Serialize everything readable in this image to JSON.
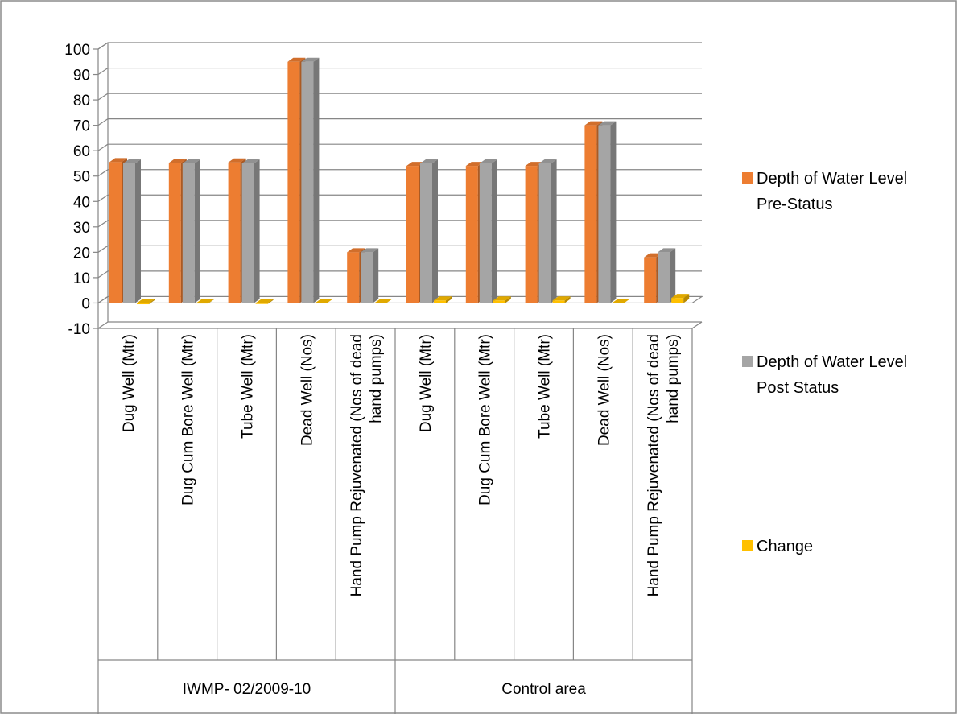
{
  "chart_data": {
    "type": "bar",
    "title": "",
    "xlabel": "",
    "ylabel": "",
    "ylim": [
      -10,
      100
    ],
    "yticks": [
      -10,
      0,
      10,
      20,
      30,
      40,
      50,
      60,
      70,
      80,
      90,
      100
    ],
    "grid": true,
    "legend_position": "right",
    "groups": [
      {
        "label": "IWMP- 02/2009-10",
        "categories": [
          0,
          1,
          2,
          3,
          4
        ]
      },
      {
        "label": "Control area",
        "categories": [
          5,
          6,
          7,
          8,
          9
        ]
      }
    ],
    "categories": [
      [
        "Dug Well (Mtr)"
      ],
      [
        "Dug Cum Bore Well (Mtr)"
      ],
      [
        "Tube Well (Mtr)"
      ],
      [
        "Dead Well (Nos)"
      ],
      [
        "Hand Pump Rejuvenated (Nos of dead",
        "hand pumps)"
      ],
      [
        "Dug Well (Mtr)"
      ],
      [
        "Dug Cum Bore Well (Mtr)"
      ],
      [
        "Tube Well (Mtr)"
      ],
      [
        "Dead Well (Nos)"
      ],
      [
        "Hand Pump Rejuvenated (Nos of dead",
        "hand pumps)"
      ]
    ],
    "series": [
      {
        "name_lines": [
          "Depth of Water Level",
          "Pre-Status"
        ],
        "color": "#ED7D31",
        "values": [
          55.5,
          55.2,
          55.4,
          95,
          20,
          54,
          54,
          54,
          70,
          18
        ]
      },
      {
        "name_lines": [
          "Depth of Water Level",
          "Post Status"
        ],
        "color": "#A5A5A5",
        "values": [
          55,
          55,
          55,
          95,
          20,
          55,
          55,
          55,
          70,
          20
        ]
      },
      {
        "name_lines": [
          "Change"
        ],
        "color": "#FFC000",
        "values": [
          -0.5,
          -0.2,
          -0.4,
          0,
          0,
          1,
          1,
          1,
          0,
          2
        ]
      }
    ]
  }
}
